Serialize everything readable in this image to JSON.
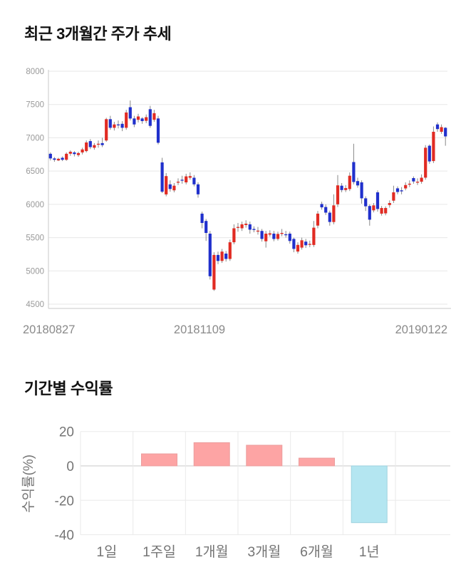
{
  "chart_data": [
    {
      "type": "candlestick",
      "title": "최근 3개월간 주가 추세",
      "x_tick_labels": [
        "20180827",
        "20181109",
        "20190122"
      ],
      "y_ticks": [
        8000,
        7500,
        7000,
        6500,
        6000,
        5500,
        5000,
        4500
      ],
      "ylim": [
        4500,
        8000
      ],
      "grid": true,
      "up_color": "#e12b23",
      "down_color": "#2030cc",
      "wick_color": "#888888",
      "axis_color": "#c9c9c9",
      "grid_color": "#e7e7e7",
      "tick_label_color": "#999999",
      "date_label_color": "#8a8a8a",
      "candles_ohlc": [
        [
          6760,
          6780,
          6660,
          6690
        ],
        [
          6690,
          6710,
          6640,
          6670
        ],
        [
          6660,
          6700,
          6650,
          6685
        ],
        [
          6700,
          6720,
          6650,
          6670
        ],
        [
          6670,
          6780,
          6655,
          6760
        ],
        [
          6760,
          6810,
          6730,
          6790
        ],
        [
          6780,
          6800,
          6720,
          6755
        ],
        [
          6740,
          6790,
          6715,
          6770
        ],
        [
          6780,
          6850,
          6750,
          6825
        ],
        [
          6800,
          6960,
          6780,
          6930
        ],
        [
          6950,
          6980,
          6830,
          6860
        ],
        [
          6850,
          6920,
          6820,
          6890
        ],
        [
          6900,
          6960,
          6850,
          6910
        ],
        [
          6920,
          7000,
          6860,
          6890
        ],
        [
          6960,
          7300,
          6940,
          7280
        ],
        [
          7280,
          7330,
          7120,
          7150
        ],
        [
          7150,
          7240,
          7110,
          7200
        ],
        [
          7200,
          7260,
          7140,
          7190
        ],
        [
          7210,
          7250,
          7100,
          7150
        ],
        [
          7150,
          7420,
          7120,
          7380
        ],
        [
          7460,
          7560,
          7260,
          7290
        ],
        [
          7290,
          7330,
          7160,
          7200
        ],
        [
          7270,
          7360,
          7230,
          7320
        ],
        [
          7290,
          7310,
          7210,
          7250
        ],
        [
          7255,
          7350,
          7220,
          7310
        ],
        [
          7430,
          7480,
          7150,
          7180
        ],
        [
          7270,
          7420,
          7240,
          7370
        ],
        [
          7290,
          7330,
          6900,
          6925
        ],
        [
          6630,
          6700,
          6170,
          6190
        ],
        [
          6150,
          6470,
          6120,
          6425
        ],
        [
          6300,
          6360,
          6190,
          6230
        ],
        [
          6210,
          6320,
          6180,
          6280
        ],
        [
          6330,
          6390,
          6290,
          6340
        ],
        [
          6370,
          6430,
          6310,
          6365
        ],
        [
          6330,
          6460,
          6300,
          6420
        ],
        [
          6400,
          6480,
          6370,
          6425
        ],
        [
          6400,
          6440,
          6270,
          6300
        ],
        [
          6300,
          6330,
          6100,
          6150
        ],
        [
          5860,
          5890,
          5640,
          5720
        ],
        [
          5750,
          5780,
          5450,
          5570
        ],
        [
          5560,
          5600,
          4870,
          4920
        ],
        [
          4720,
          5280,
          4700,
          5240
        ],
        [
          5240,
          5290,
          5100,
          5150
        ],
        [
          5150,
          5330,
          5120,
          5290
        ],
        [
          5260,
          5300,
          5140,
          5180
        ],
        [
          5180,
          5470,
          5150,
          5430
        ],
        [
          5430,
          5700,
          5400,
          5640
        ],
        [
          5650,
          5720,
          5590,
          5660
        ],
        [
          5640,
          5740,
          5600,
          5700
        ],
        [
          5690,
          5760,
          5650,
          5710
        ],
        [
          5700,
          5740,
          5560,
          5620
        ],
        [
          5630,
          5670,
          5580,
          5615
        ],
        [
          5600,
          5660,
          5545,
          5605
        ],
        [
          5600,
          5630,
          5440,
          5480
        ],
        [
          5445,
          5600,
          5350,
          5560
        ],
        [
          5545,
          5610,
          5515,
          5565
        ],
        [
          5560,
          5600,
          5445,
          5480
        ],
        [
          5480,
          5590,
          5455,
          5555
        ],
        [
          5555,
          5630,
          5520,
          5570
        ],
        [
          5550,
          5600,
          5500,
          5545
        ],
        [
          5560,
          5590,
          5410,
          5450
        ],
        [
          5480,
          5500,
          5280,
          5330
        ],
        [
          5290,
          5430,
          5260,
          5390
        ],
        [
          5350,
          5500,
          5320,
          5460
        ],
        [
          5440,
          5480,
          5345,
          5385
        ],
        [
          5400,
          5455,
          5355,
          5405
        ],
        [
          5390,
          5750,
          5360,
          5650
        ],
        [
          5680,
          5900,
          5640,
          5860
        ],
        [
          6005,
          6040,
          5920,
          5955
        ],
        [
          5960,
          6000,
          5840,
          5875
        ],
        [
          5875,
          5905,
          5680,
          5735
        ],
        [
          5735,
          6150,
          5700,
          5985
        ],
        [
          6000,
          6440,
          5960,
          6285
        ],
        [
          6280,
          6320,
          6180,
          6215
        ],
        [
          6215,
          6290,
          6185,
          6245
        ],
        [
          6230,
          6480,
          6200,
          6430
        ],
        [
          6635,
          6910,
          6300,
          6335
        ],
        [
          6350,
          6400,
          6250,
          6285
        ],
        [
          6330,
          6360,
          6010,
          6090
        ],
        [
          6090,
          6120,
          5900,
          5970
        ],
        [
          5975,
          6000,
          5680,
          5770
        ],
        [
          5910,
          6020,
          5880,
          5985
        ],
        [
          6180,
          6210,
          5890,
          5930
        ],
        [
          5860,
          5975,
          5830,
          5945
        ],
        [
          5865,
          5970,
          5835,
          5945
        ],
        [
          5990,
          6060,
          5950,
          6020
        ],
        [
          6055,
          6280,
          6020,
          6180
        ],
        [
          6240,
          6270,
          6150,
          6185
        ],
        [
          6210,
          6260,
          6150,
          6195
        ],
        [
          6240,
          6330,
          6210,
          6290
        ],
        [
          6300,
          6360,
          6260,
          6310
        ],
        [
          6395,
          6420,
          6310,
          6345
        ],
        [
          6330,
          6390,
          6290,
          6340
        ],
        [
          6340,
          6450,
          6310,
          6400
        ],
        [
          6400,
          6890,
          6370,
          6850
        ],
        [
          6880,
          6900,
          6610,
          6645
        ],
        [
          6650,
          7170,
          6620,
          7090
        ],
        [
          7200,
          7230,
          7090,
          7130
        ],
        [
          7090,
          7200,
          7060,
          7160
        ],
        [
          7150,
          7160,
          6880,
          7020
        ]
      ]
    },
    {
      "type": "bar",
      "title": "기간별 수익률",
      "ylabel": "수익률(%)",
      "categories": [
        "1일",
        "1주일",
        "1개월",
        "3개월",
        "6개월",
        "1년"
      ],
      "values": [
        0,
        7,
        13.5,
        12,
        4.5,
        -33
      ],
      "y_ticks": [
        20,
        0,
        -20,
        -40
      ],
      "ylim": [
        -40,
        20
      ],
      "grid": true,
      "legend": "none",
      "positive_color": "#fda4a4",
      "positive_border": "#eb9d9d",
      "negative_color": "#b4e6f1",
      "negative_border": "#9ed2de",
      "zero_line_color": "#c9c9c9",
      "grid_color": "#eaeaea",
      "label_color": "#757575"
    }
  ]
}
